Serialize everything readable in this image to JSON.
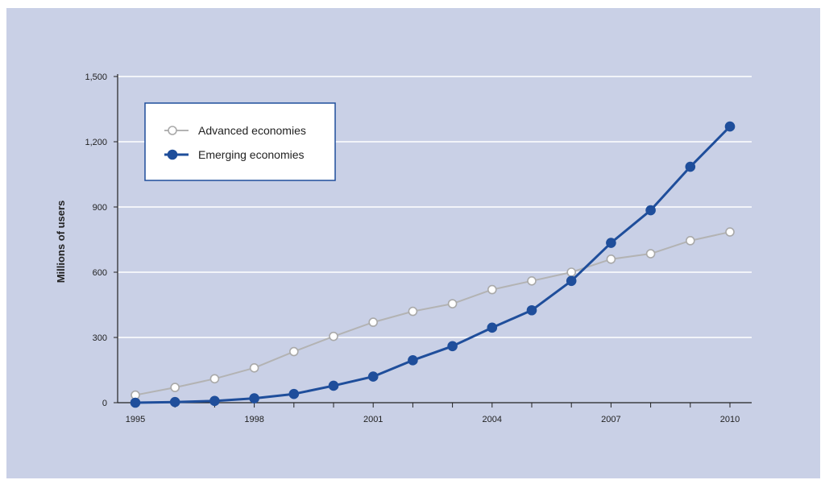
{
  "chart_data": {
    "type": "line",
    "title": "",
    "xlabel": "",
    "ylabel": "Millions of users",
    "x": [
      1995,
      1996,
      1997,
      1998,
      1999,
      2000,
      2001,
      2002,
      2003,
      2004,
      2005,
      2006,
      2007,
      2008,
      2009,
      2010
    ],
    "x_ticks": [
      "1995",
      "1998",
      "2001",
      "2004",
      "2007",
      "2010"
    ],
    "y_ticks": [
      "0",
      "300",
      "600",
      "900",
      "1,200",
      "1,500"
    ],
    "ylim": [
      0,
      1500
    ],
    "grid": "horizontal",
    "legend_position": "top-left",
    "series": [
      {
        "name": "Advanced economies",
        "color": "#ffffff",
        "marker": "hollow-circle",
        "values": [
          35,
          70,
          110,
          160,
          235,
          305,
          370,
          420,
          455,
          520,
          560,
          600,
          660,
          685,
          745,
          785
        ]
      },
      {
        "name": "Emerging economies",
        "color": "#1f4e9b",
        "marker": "filled-circle",
        "values": [
          0,
          3,
          8,
          20,
          40,
          78,
          120,
          195,
          260,
          345,
          425,
          560,
          735,
          885,
          1085,
          1270
        ]
      }
    ]
  }
}
